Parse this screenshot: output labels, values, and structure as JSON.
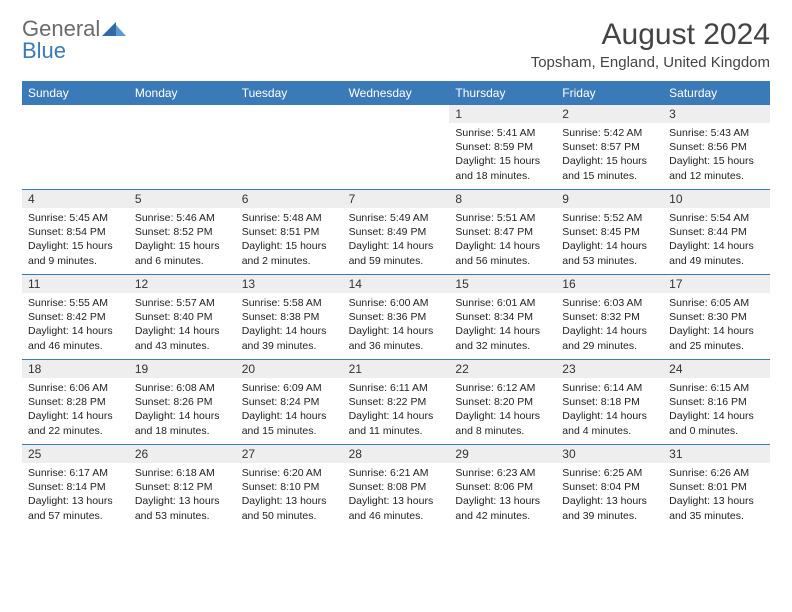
{
  "logo": {
    "text_main": "General",
    "text_accent": "Blue"
  },
  "title": "August 2024",
  "location": "Topsham, England, United Kingdom",
  "colors": {
    "header_bg": "#3b7ab8",
    "daynum_bg": "#eeeeee",
    "week_border": "#3b7ab8",
    "text": "#222222",
    "title_text": "#444444",
    "logo_gray": "#6b6b6b",
    "logo_blue": "#3b7ab8"
  },
  "day_names": [
    "Sunday",
    "Monday",
    "Tuesday",
    "Wednesday",
    "Thursday",
    "Friday",
    "Saturday"
  ],
  "weeks": [
    [
      null,
      null,
      null,
      null,
      {
        "n": "1",
        "sunrise": "5:41 AM",
        "sunset": "8:59 PM",
        "daylight": "15 hours and 18 minutes."
      },
      {
        "n": "2",
        "sunrise": "5:42 AM",
        "sunset": "8:57 PM",
        "daylight": "15 hours and 15 minutes."
      },
      {
        "n": "3",
        "sunrise": "5:43 AM",
        "sunset": "8:56 PM",
        "daylight": "15 hours and 12 minutes."
      }
    ],
    [
      {
        "n": "4",
        "sunrise": "5:45 AM",
        "sunset": "8:54 PM",
        "daylight": "15 hours and 9 minutes."
      },
      {
        "n": "5",
        "sunrise": "5:46 AM",
        "sunset": "8:52 PM",
        "daylight": "15 hours and 6 minutes."
      },
      {
        "n": "6",
        "sunrise": "5:48 AM",
        "sunset": "8:51 PM",
        "daylight": "15 hours and 2 minutes."
      },
      {
        "n": "7",
        "sunrise": "5:49 AM",
        "sunset": "8:49 PM",
        "daylight": "14 hours and 59 minutes."
      },
      {
        "n": "8",
        "sunrise": "5:51 AM",
        "sunset": "8:47 PM",
        "daylight": "14 hours and 56 minutes."
      },
      {
        "n": "9",
        "sunrise": "5:52 AM",
        "sunset": "8:45 PM",
        "daylight": "14 hours and 53 minutes."
      },
      {
        "n": "10",
        "sunrise": "5:54 AM",
        "sunset": "8:44 PM",
        "daylight": "14 hours and 49 minutes."
      }
    ],
    [
      {
        "n": "11",
        "sunrise": "5:55 AM",
        "sunset": "8:42 PM",
        "daylight": "14 hours and 46 minutes."
      },
      {
        "n": "12",
        "sunrise": "5:57 AM",
        "sunset": "8:40 PM",
        "daylight": "14 hours and 43 minutes."
      },
      {
        "n": "13",
        "sunrise": "5:58 AM",
        "sunset": "8:38 PM",
        "daylight": "14 hours and 39 minutes."
      },
      {
        "n": "14",
        "sunrise": "6:00 AM",
        "sunset": "8:36 PM",
        "daylight": "14 hours and 36 minutes."
      },
      {
        "n": "15",
        "sunrise": "6:01 AM",
        "sunset": "8:34 PM",
        "daylight": "14 hours and 32 minutes."
      },
      {
        "n": "16",
        "sunrise": "6:03 AM",
        "sunset": "8:32 PM",
        "daylight": "14 hours and 29 minutes."
      },
      {
        "n": "17",
        "sunrise": "6:05 AM",
        "sunset": "8:30 PM",
        "daylight": "14 hours and 25 minutes."
      }
    ],
    [
      {
        "n": "18",
        "sunrise": "6:06 AM",
        "sunset": "8:28 PM",
        "daylight": "14 hours and 22 minutes."
      },
      {
        "n": "19",
        "sunrise": "6:08 AM",
        "sunset": "8:26 PM",
        "daylight": "14 hours and 18 minutes."
      },
      {
        "n": "20",
        "sunrise": "6:09 AM",
        "sunset": "8:24 PM",
        "daylight": "14 hours and 15 minutes."
      },
      {
        "n": "21",
        "sunrise": "6:11 AM",
        "sunset": "8:22 PM",
        "daylight": "14 hours and 11 minutes."
      },
      {
        "n": "22",
        "sunrise": "6:12 AM",
        "sunset": "8:20 PM",
        "daylight": "14 hours and 8 minutes."
      },
      {
        "n": "23",
        "sunrise": "6:14 AM",
        "sunset": "8:18 PM",
        "daylight": "14 hours and 4 minutes."
      },
      {
        "n": "24",
        "sunrise": "6:15 AM",
        "sunset": "8:16 PM",
        "daylight": "14 hours and 0 minutes."
      }
    ],
    [
      {
        "n": "25",
        "sunrise": "6:17 AM",
        "sunset": "8:14 PM",
        "daylight": "13 hours and 57 minutes."
      },
      {
        "n": "26",
        "sunrise": "6:18 AM",
        "sunset": "8:12 PM",
        "daylight": "13 hours and 53 minutes."
      },
      {
        "n": "27",
        "sunrise": "6:20 AM",
        "sunset": "8:10 PM",
        "daylight": "13 hours and 50 minutes."
      },
      {
        "n": "28",
        "sunrise": "6:21 AM",
        "sunset": "8:08 PM",
        "daylight": "13 hours and 46 minutes."
      },
      {
        "n": "29",
        "sunrise": "6:23 AM",
        "sunset": "8:06 PM",
        "daylight": "13 hours and 42 minutes."
      },
      {
        "n": "30",
        "sunrise": "6:25 AM",
        "sunset": "8:04 PM",
        "daylight": "13 hours and 39 minutes."
      },
      {
        "n": "31",
        "sunrise": "6:26 AM",
        "sunset": "8:01 PM",
        "daylight": "13 hours and 35 minutes."
      }
    ]
  ],
  "labels": {
    "sunrise": "Sunrise:",
    "sunset": "Sunset:",
    "daylight": "Daylight:"
  }
}
